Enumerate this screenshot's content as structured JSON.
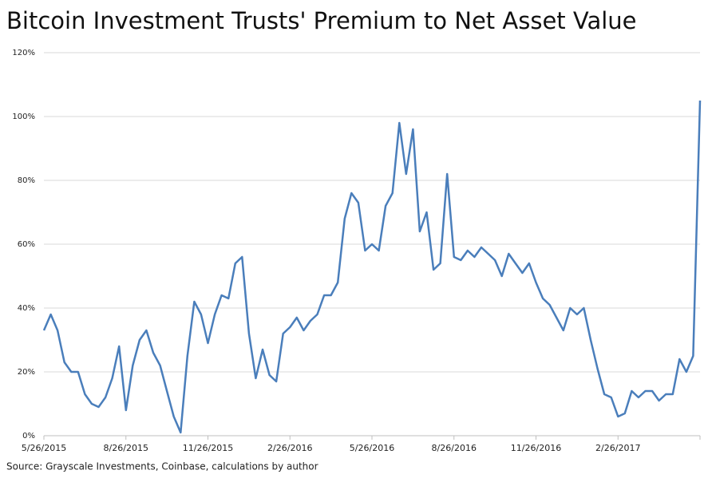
{
  "chart_data": {
    "type": "line",
    "title": "Bitcoin Investment Trusts' Premium to Net Asset Value",
    "source": "Source: Grayscale Investments, Coinbase, calculations by author",
    "categories": [
      "5/26/2015",
      null,
      null,
      null,
      null,
      null,
      null,
      null,
      null,
      null,
      null,
      null,
      "8/26/2015",
      null,
      null,
      null,
      null,
      null,
      null,
      null,
      null,
      null,
      null,
      null,
      "11/26/2015",
      null,
      null,
      null,
      null,
      null,
      null,
      null,
      null,
      null,
      null,
      null,
      "2/26/2016",
      null,
      null,
      null,
      null,
      null,
      null,
      null,
      null,
      null,
      null,
      null,
      "5/26/2016",
      null,
      null,
      null,
      null,
      null,
      null,
      null,
      null,
      null,
      null,
      null,
      "8/26/2016",
      null,
      null,
      null,
      null,
      null,
      null,
      null,
      null,
      null,
      null,
      null,
      "11/26/2016",
      null,
      null,
      null,
      null,
      null,
      null,
      null,
      null,
      null,
      null,
      null,
      "2/26/2017",
      null,
      null,
      null,
      null,
      null,
      null,
      null,
      null,
      null,
      null,
      null,
      null
    ],
    "series": [
      {
        "name": "Premium to NAV",
        "color": "#4a7ebb",
        "values": [
          33,
          38,
          33,
          23,
          20,
          20,
          13,
          10,
          9,
          12,
          18,
          28,
          8,
          22,
          30,
          33,
          26,
          22,
          14,
          6,
          1,
          25,
          42,
          38,
          29,
          38,
          44,
          43,
          54,
          56,
          32,
          18,
          27,
          19,
          17,
          32,
          34,
          37,
          33,
          36,
          38,
          44,
          44,
          48,
          68,
          76,
          73,
          58,
          60,
          58,
          72,
          76,
          98,
          82,
          96,
          64,
          70,
          52,
          54,
          82,
          56,
          55,
          58,
          56,
          59,
          57,
          55,
          50,
          57,
          54,
          51,
          54,
          48,
          43,
          41,
          37,
          33,
          40,
          38,
          40,
          30,
          21,
          13,
          12,
          6,
          7,
          14,
          12,
          14,
          14,
          11,
          13,
          13,
          24,
          20,
          25,
          105
        ]
      }
    ],
    "ylim": [
      0,
      120
    ],
    "yticks": [
      {
        "value": 0,
        "label": "0%"
      },
      {
        "value": 20,
        "label": "20%"
      },
      {
        "value": 40,
        "label": "40%"
      },
      {
        "value": 60,
        "label": "60%"
      },
      {
        "value": 80,
        "label": "80%"
      },
      {
        "value": 100,
        "label": "100%"
      },
      {
        "value": 120,
        "label": "120%"
      }
    ],
    "grid": true
  }
}
